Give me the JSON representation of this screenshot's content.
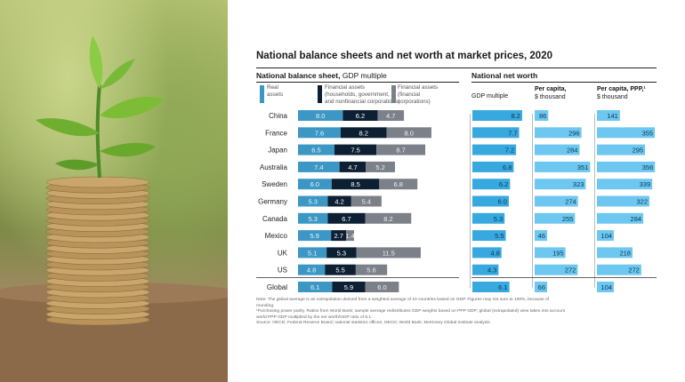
{
  "colors": {
    "real": "#3c97c4",
    "fin_hh": "#0c1f33",
    "fin_corp": "#7c8189",
    "nw_bar": "#37a9df",
    "pc_bar": "#6dc7f0",
    "ppp_bar": "#6dc7f0"
  },
  "header": {
    "title": "National balance sheets and net worth at market prices, 2020",
    "left_subtitle_bold": "National balance sheet,",
    "left_subtitle_rest": " GDP multiple",
    "right_subtitle": "National net worth"
  },
  "legend": {
    "real": [
      "Real",
      "assets"
    ],
    "fin_hh": [
      "Financial assets",
      "(households, government,",
      "and nonfinancial corporations)"
    ],
    "fin_corp": [
      "Financial assets",
      "(financial",
      "corporations)"
    ]
  },
  "columns": {
    "gdp": [
      "GDP multiple"
    ],
    "per_capita": [
      "Per capita,",
      "$ thousand"
    ],
    "ppp": [
      "Per capita, PPP,¹",
      "$ thousand"
    ]
  },
  "notes": [
    "Note: The global average is an extrapolation derived from a weighted average of 10 countries based on GDP. Figures may not sum to 100%, because of",
    "rounding.",
    "¹Purchasing power parity. Ratios from World Bank; sample average redistributes GDP weights based on PPP GDP; global (extrapolated) view takes into account",
    "world PPP GDP multiplied by the net worth/GDP ratio of 6.1.",
    "Source: OECD; Federal Reserve Board; national statistics offices; OECD; World Bank; McKinsey Global Institute analysis"
  ],
  "chart_data": {
    "type": "bar",
    "categories": [
      "China",
      "France",
      "Japan",
      "Australia",
      "Sweden",
      "Germany",
      "Canada",
      "Mexico",
      "UK",
      "US",
      "Global"
    ],
    "balance_sheet": {
      "series": [
        {
          "name": "Real assets",
          "values": [
            8.0,
            7.6,
            6.5,
            7.4,
            6.0,
            5.3,
            5.3,
            5.9,
            5.1,
            4.8,
            6.1
          ]
        },
        {
          "name": "Financial assets (households, government, and nonfinancial corporations)",
          "values": [
            6.2,
            8.2,
            7.5,
            4.7,
            8.5,
            4.2,
            6.7,
            2.7,
            5.3,
            5.5,
            5.9
          ]
        },
        {
          "name": "Financial assets (financial corporations)",
          "values": [
            4.7,
            8.0,
            8.7,
            5.2,
            6.8,
            5.4,
            8.2,
            1.4,
            11.5,
            5.6,
            6.0
          ]
        }
      ]
    },
    "net_worth": {
      "gdp_multiple": [
        8.2,
        7.7,
        7.2,
        6.8,
        6.2,
        6.0,
        5.3,
        5.5,
        4.8,
        4.3,
        6.1
      ],
      "per_capita_thousand": [
        86,
        296,
        284,
        351,
        323,
        274,
        255,
        46,
        195,
        272,
        66
      ],
      "per_capita_ppp_thousand": [
        141,
        355,
        295,
        356,
        339,
        322,
        284,
        104,
        218,
        272,
        104
      ]
    }
  }
}
